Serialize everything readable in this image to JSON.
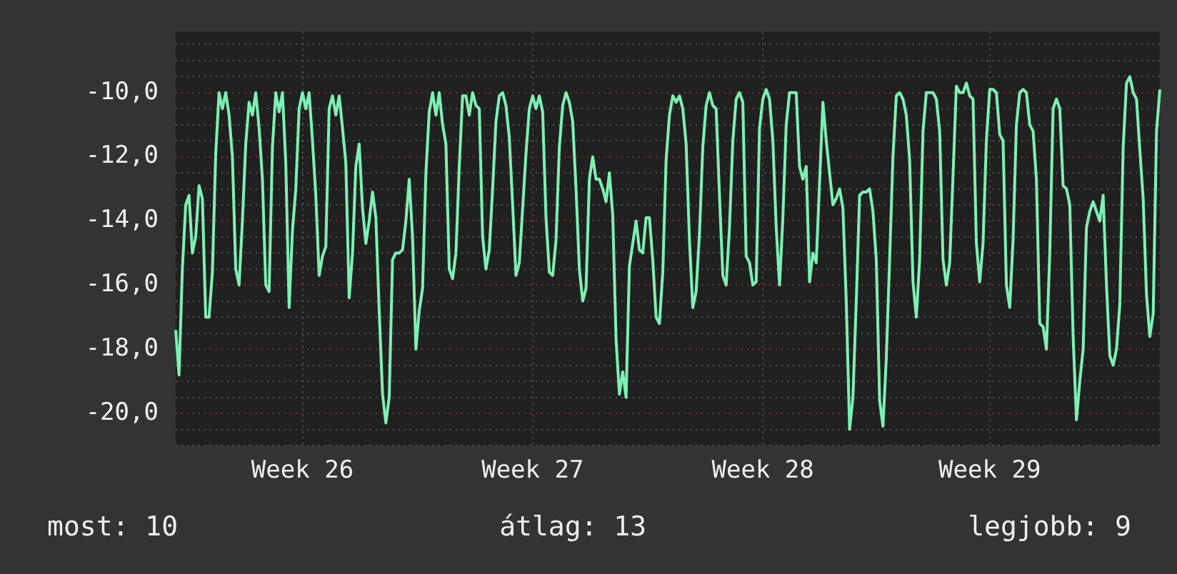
{
  "chart_data": {
    "type": "line",
    "series": [
      {
        "color": "#7ef0b4",
        "values": [
          -17.4,
          -18.8,
          -15.5,
          -13.5,
          -13.2,
          -15.0,
          -14.5,
          -12.9,
          -13.3,
          -17.0,
          -17.0,
          -15.6,
          -11.9,
          -10.0,
          -10.5,
          -10.0,
          -10.7,
          -12.0,
          -15.5,
          -16.0,
          -14.0,
          -11.6,
          -10.3,
          -10.7,
          -10.0,
          -11.1,
          -12.7,
          -16.0,
          -16.2,
          -11.7,
          -10.0,
          -10.6,
          -10.0,
          -12.2,
          -16.7,
          -14.3,
          -13.0,
          -10.5,
          -10.0,
          -10.5,
          -10.0,
          -11.5,
          -13.2,
          -15.7,
          -15.1,
          -14.8,
          -10.5,
          -10.1,
          -10.7,
          -10.1,
          -11.1,
          -12.2,
          -16.4,
          -15.0,
          -12.3,
          -11.6,
          -13.6,
          -14.7,
          -14.0,
          -13.1,
          -13.9,
          -16.8,
          -19.4,
          -20.3,
          -19.5,
          -15.2,
          -15.0,
          -15.0,
          -14.9,
          -14.0,
          -12.7,
          -14.5,
          -18.0,
          -16.8,
          -16.1,
          -12.5,
          -10.6,
          -10.0,
          -10.7,
          -10.0,
          -11.0,
          -11.6,
          -15.5,
          -15.8,
          -15.0,
          -12.3,
          -10.1,
          -10.1,
          -10.7,
          -10.0,
          -10.4,
          -10.5,
          -14.5,
          -15.5,
          -14.9,
          -13.0,
          -10.9,
          -10.1,
          -10.0,
          -10.4,
          -11.4,
          -13.5,
          -15.7,
          -15.3,
          -13.6,
          -11.9,
          -10.5,
          -10.1,
          -10.5,
          -10.1,
          -10.6,
          -13.9,
          -15.6,
          -15.7,
          -14.6,
          -11.7,
          -10.4,
          -10.0,
          -10.3,
          -10.9,
          -13.0,
          -15.5,
          -16.5,
          -16.1,
          -12.7,
          -12.0,
          -12.7,
          -12.7,
          -13.0,
          -13.4,
          -12.5,
          -13.8,
          -17.7,
          -19.4,
          -18.7,
          -19.5,
          -15.4,
          -14.7,
          -14.0,
          -14.9,
          -15.0,
          -13.9,
          -13.9,
          -15.2,
          -17.0,
          -17.2,
          -15.6,
          -12.1,
          -10.7,
          -10.1,
          -10.3,
          -10.1,
          -10.5,
          -11.6,
          -14.6,
          -16.7,
          -16.2,
          -14.4,
          -11.7,
          -10.4,
          -10.0,
          -10.4,
          -10.5,
          -13.2,
          -15.7,
          -16.0,
          -14.2,
          -11.5,
          -10.2,
          -10.0,
          -10.3,
          -15.1,
          -15.3,
          -16.0,
          -15.9,
          -11.1,
          -10.2,
          -9.9,
          -10.2,
          -11.5,
          -14.2,
          -16.0,
          -13.9,
          -11.0,
          -10.0,
          -10.0,
          -10.0,
          -12.3,
          -12.7,
          -12.3,
          -15.9,
          -15.0,
          -15.3,
          -12.8,
          -10.3,
          -11.5,
          -12.5,
          -13.5,
          -13.3,
          -13.0,
          -13.6,
          -16.5,
          -20.5,
          -19.5,
          -16.5,
          -13.2,
          -13.1,
          -13.1,
          -13.0,
          -13.7,
          -15.2,
          -19.6,
          -20.4,
          -18.3,
          -15.2,
          -12.0,
          -10.1,
          -10.0,
          -10.2,
          -10.7,
          -12.1,
          -15.9,
          -17.0,
          -15.2,
          -11.2,
          -10.0,
          -10.0,
          -10.0,
          -10.2,
          -11.2,
          -15.2,
          -16.0,
          -15.3,
          -12.6,
          -9.8,
          -10.0,
          -10.0,
          -9.7,
          -10.1,
          -10.2,
          -14.7,
          -15.9,
          -14.7,
          -11.5,
          -9.9,
          -9.9,
          -10.0,
          -11.3,
          -11.5,
          -16.0,
          -16.7,
          -14.6,
          -11.0,
          -10.0,
          -9.9,
          -10.0,
          -11.0,
          -11.2,
          -12.7,
          -17.2,
          -17.3,
          -18.0,
          -15.0,
          -10.5,
          -10.2,
          -10.5,
          -12.9,
          -13.0,
          -13.5,
          -17.6,
          -20.2,
          -19.0,
          -18.0,
          -14.2,
          -13.7,
          -13.4,
          -13.7,
          -14.0,
          -13.2,
          -16.0,
          -18.2,
          -18.5,
          -18.0,
          -16.6,
          -11.7,
          -9.7,
          -9.5,
          -10.0,
          -10.2,
          -11.8,
          -13.3,
          -16.3,
          -17.6,
          -16.9,
          -11.2,
          -9.9
        ]
      }
    ],
    "categories": [
      null,
      null,
      null,
      null,
      null,
      null,
      null,
      null,
      null,
      null,
      null,
      null,
      null,
      null,
      null,
      null,
      null,
      null,
      null,
      null,
      null,
      null,
      null,
      null,
      null,
      null,
      null,
      null,
      null,
      null,
      null,
      null,
      null,
      null,
      null,
      null,
      null,
      null,
      "Week 26",
      null,
      null,
      null,
      null,
      null,
      null,
      null,
      null,
      null,
      null,
      null,
      null,
      null,
      null,
      null,
      null,
      null,
      null,
      null,
      null,
      null,
      null,
      null,
      null,
      null,
      null,
      null,
      null,
      null,
      null,
      null,
      null,
      null,
      null,
      null,
      null,
      null,
      null,
      null,
      null,
      null,
      null,
      null,
      null,
      null,
      null,
      null,
      null,
      null,
      null,
      null,
      null,
      null,
      null,
      null,
      null,
      null,
      null,
      null,
      null,
      null,
      null,
      null,
      null,
      null,
      null,
      null,
      null,
      "Week 27",
      null,
      null,
      null,
      null,
      null,
      null,
      null,
      null,
      null,
      null,
      null,
      null,
      null,
      null,
      null,
      null,
      null,
      null,
      null,
      null,
      null,
      null,
      null,
      null,
      null,
      null,
      null,
      null,
      null,
      null,
      null,
      null,
      null,
      null,
      null,
      null,
      null,
      null,
      null,
      null,
      null,
      null,
      null,
      null,
      null,
      null,
      null,
      null,
      null,
      null,
      null,
      null,
      null,
      null,
      null,
      null,
      null,
      null,
      null,
      null,
      null,
      null,
      null,
      null,
      null,
      null,
      null,
      null,
      "Week 28",
      null,
      null,
      null,
      null,
      null,
      null,
      null,
      null,
      null,
      null,
      null,
      null,
      null,
      null,
      null,
      null,
      null,
      null,
      null,
      null,
      null,
      null,
      null,
      null,
      null,
      null,
      null,
      null,
      null,
      null,
      null,
      null,
      null,
      null,
      null,
      null,
      null,
      null,
      null,
      null,
      null,
      null,
      null,
      null,
      null,
      null,
      null,
      null,
      null,
      null,
      null,
      null,
      null,
      null,
      null,
      null,
      null,
      null,
      null,
      null,
      null,
      null,
      null,
      null,
      null,
      null,
      null,
      "Week 29",
      null,
      null,
      null,
      null,
      null,
      null,
      null,
      null,
      null,
      null,
      null,
      null,
      null,
      null,
      null,
      null,
      null,
      null,
      null,
      null,
      null,
      null,
      null,
      null,
      null,
      null,
      null,
      null,
      null,
      null,
      null,
      null,
      null,
      null,
      null,
      null,
      null,
      null,
      null,
      null,
      null,
      null,
      null,
      null,
      null,
      null,
      null,
      null,
      null,
      null,
      null
    ],
    "ylim": [
      -21,
      -8.1
    ],
    "yticks": [
      {
        "value": -21,
        "label": null
      },
      {
        "value": -20.5,
        "label": null
      },
      {
        "value": -20,
        "label": "-20,0"
      },
      {
        "value": -19.5,
        "label": null
      },
      {
        "value": -19,
        "label": null
      },
      {
        "value": -18.5,
        "label": null
      },
      {
        "value": -18,
        "label": "-18,0"
      },
      {
        "value": -17.5,
        "label": null
      },
      {
        "value": -17,
        "label": null
      },
      {
        "value": -16.5,
        "label": null
      },
      {
        "value": -16,
        "label": "-16,0"
      },
      {
        "value": -15.5,
        "label": null
      },
      {
        "value": -15,
        "label": null
      },
      {
        "value": -14.5,
        "label": null
      },
      {
        "value": -14,
        "label": "-14,0"
      },
      {
        "value": -13.5,
        "label": null
      },
      {
        "value": -13,
        "label": null
      },
      {
        "value": -12.5,
        "label": null
      },
      {
        "value": -12,
        "label": "-12,0"
      },
      {
        "value": -11.5,
        "label": null
      },
      {
        "value": -11,
        "label": null
      },
      {
        "value": -10.5,
        "label": null
      },
      {
        "value": -10,
        "label": "-10,0"
      },
      {
        "value": -9.5,
        "label": null
      },
      {
        "value": -9,
        "label": null
      },
      {
        "value": -8.5,
        "label": null
      }
    ],
    "grid": true,
    "legend": false,
    "annotations": [
      "most: 10",
      "átlag: 13",
      "legjobb: 9"
    ]
  }
}
